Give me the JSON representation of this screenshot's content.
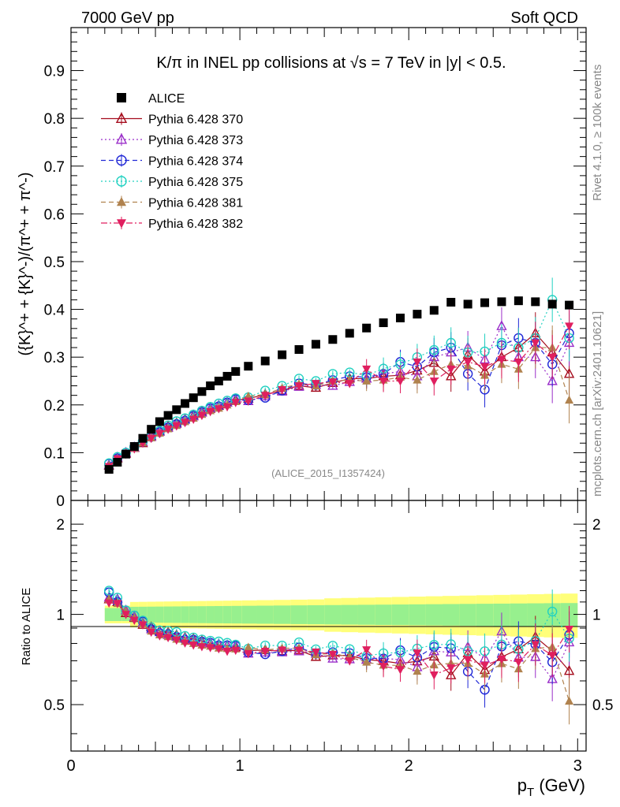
{
  "header": {
    "left": "7000 GeV pp",
    "right": "Soft QCD"
  },
  "side_labels": {
    "rivet": "Rivet 4.1.0, ≥ 100k events",
    "mcplots": "mcplots.cern.ch [arXiv:2401.10621]"
  },
  "chart_data": {
    "type": "scatter",
    "title": "K/π in INEL pp collisions at √s =  7 TeV in |y| < 0.5.",
    "analysis_tag": "(ALICE_2015_I1357424)",
    "xlabel": "p_T (GeV)",
    "ylabel": "({K}^+ + {K}^-)/(π^+ + π^-)",
    "ratio_ylabel": "Ratio to ALICE",
    "xlim": [
      0,
      3.05
    ],
    "ylim": [
      0,
      0.99
    ],
    "ratio_ylim": [
      0.35,
      2.4
    ],
    "x_ticks": [
      "0",
      "1",
      "2",
      "3"
    ],
    "y_ticks": [
      "0",
      "0.1",
      "0.2",
      "0.3",
      "0.4",
      "0.5",
      "0.6",
      "0.7",
      "0.8",
      "0.9"
    ],
    "ratio_ticks": [
      "0.5",
      "1",
      "2"
    ],
    "x": [
      0.225,
      0.275,
      0.325,
      0.375,
      0.425,
      0.475,
      0.525,
      0.575,
      0.625,
      0.675,
      0.725,
      0.775,
      0.825,
      0.875,
      0.925,
      0.975,
      1.05,
      1.15,
      1.25,
      1.35,
      1.45,
      1.55,
      1.65,
      1.75,
      1.85,
      1.95,
      2.05,
      2.15,
      2.25,
      2.35,
      2.45,
      2.55,
      2.65,
      2.75,
      2.85,
      2.95
    ],
    "series": [
      {
        "name": "ALICE",
        "color": "#000000",
        "marker": "square-filled",
        "dash": "none",
        "values": [
          0.065,
          0.08,
          0.097,
          0.113,
          0.13,
          0.149,
          0.165,
          0.178,
          0.19,
          0.203,
          0.215,
          0.228,
          0.24,
          0.25,
          0.26,
          0.27,
          0.281,
          0.292,
          0.305,
          0.316,
          0.327,
          0.337,
          0.35,
          0.361,
          0.372,
          0.382,
          0.39,
          0.398,
          0.415,
          0.411,
          0.414,
          0.416,
          0.418,
          0.416,
          0.411,
          0.409
        ]
      },
      {
        "name": "Pythia 6.428 370",
        "color": "#a50b1c",
        "marker": "triangle-up-open",
        "dash": "none",
        "values": [
          0.073,
          0.088,
          0.098,
          0.11,
          0.12,
          0.135,
          0.145,
          0.155,
          0.162,
          0.17,
          0.178,
          0.186,
          0.192,
          0.198,
          0.205,
          0.21,
          0.213,
          0.222,
          0.23,
          0.24,
          0.236,
          0.246,
          0.255,
          0.255,
          0.26,
          0.262,
          0.272,
          0.288,
          0.26,
          0.305,
          0.27,
          0.3,
          0.32,
          0.35,
          0.31,
          0.265
        ]
      },
      {
        "name": "Pythia 6.428 373",
        "color": "#9a2ec9",
        "marker": "triangle-up-open",
        "dash": "dotted",
        "values": [
          0.074,
          0.09,
          0.1,
          0.111,
          0.122,
          0.133,
          0.144,
          0.152,
          0.16,
          0.169,
          0.176,
          0.184,
          0.193,
          0.199,
          0.205,
          0.212,
          0.208,
          0.218,
          0.228,
          0.238,
          0.242,
          0.24,
          0.248,
          0.255,
          0.265,
          0.27,
          0.26,
          0.3,
          0.31,
          0.32,
          0.295,
          0.365,
          0.3,
          0.3,
          0.25,
          0.33
        ]
      },
      {
        "name": "Pythia 6.428 374",
        "color": "#1f27d6",
        "marker": "circle-open",
        "dash": "dashed",
        "values": [
          0.077,
          0.088,
          0.1,
          0.112,
          0.123,
          0.133,
          0.143,
          0.153,
          0.16,
          0.167,
          0.177,
          0.185,
          0.193,
          0.197,
          0.205,
          0.212,
          0.21,
          0.215,
          0.23,
          0.245,
          0.242,
          0.252,
          0.26,
          0.258,
          0.265,
          0.29,
          0.28,
          0.31,
          0.32,
          0.265,
          0.232,
          0.325,
          0.34,
          0.33,
          0.285,
          0.35
        ]
      },
      {
        "name": "Pythia 6.428 375",
        "color": "#21d1c1",
        "marker": "circle-open",
        "dash": "dotted",
        "values": [
          0.078,
          0.091,
          0.1,
          0.112,
          0.124,
          0.135,
          0.146,
          0.157,
          0.166,
          0.172,
          0.18,
          0.188,
          0.196,
          0.203,
          0.209,
          0.214,
          0.216,
          0.23,
          0.24,
          0.255,
          0.25,
          0.265,
          0.268,
          0.262,
          0.276,
          0.285,
          0.3,
          0.315,
          0.33,
          0.31,
          0.312,
          0.33,
          0.32,
          0.34,
          0.42,
          0.34
        ]
      },
      {
        "name": "Pythia 6.428 381",
        "color": "#b0824e",
        "marker": "triangle-up-filled",
        "dash": "dashed",
        "values": [
          0.073,
          0.087,
          0.099,
          0.11,
          0.121,
          0.131,
          0.141,
          0.15,
          0.157,
          0.165,
          0.172,
          0.18,
          0.188,
          0.193,
          0.2,
          0.207,
          0.218,
          0.222,
          0.235,
          0.244,
          0.24,
          0.25,
          0.252,
          0.25,
          0.252,
          0.258,
          0.252,
          0.27,
          0.285,
          0.282,
          0.262,
          0.285,
          0.275,
          0.32,
          0.32,
          0.21
        ]
      },
      {
        "name": "Pythia 6.428 382",
        "color": "#e01f5f",
        "marker": "triangle-down-filled",
        "dash": "dashdot",
        "values": [
          0.071,
          0.087,
          0.097,
          0.108,
          0.12,
          0.13,
          0.14,
          0.149,
          0.156,
          0.163,
          0.17,
          0.178,
          0.186,
          0.192,
          0.196,
          0.205,
          0.208,
          0.22,
          0.232,
          0.24,
          0.245,
          0.248,
          0.245,
          0.275,
          0.25,
          0.25,
          0.29,
          0.25,
          0.275,
          0.29,
          0.28,
          0.295,
          0.29,
          0.33,
          0.3,
          0.365
        ]
      }
    ]
  }
}
